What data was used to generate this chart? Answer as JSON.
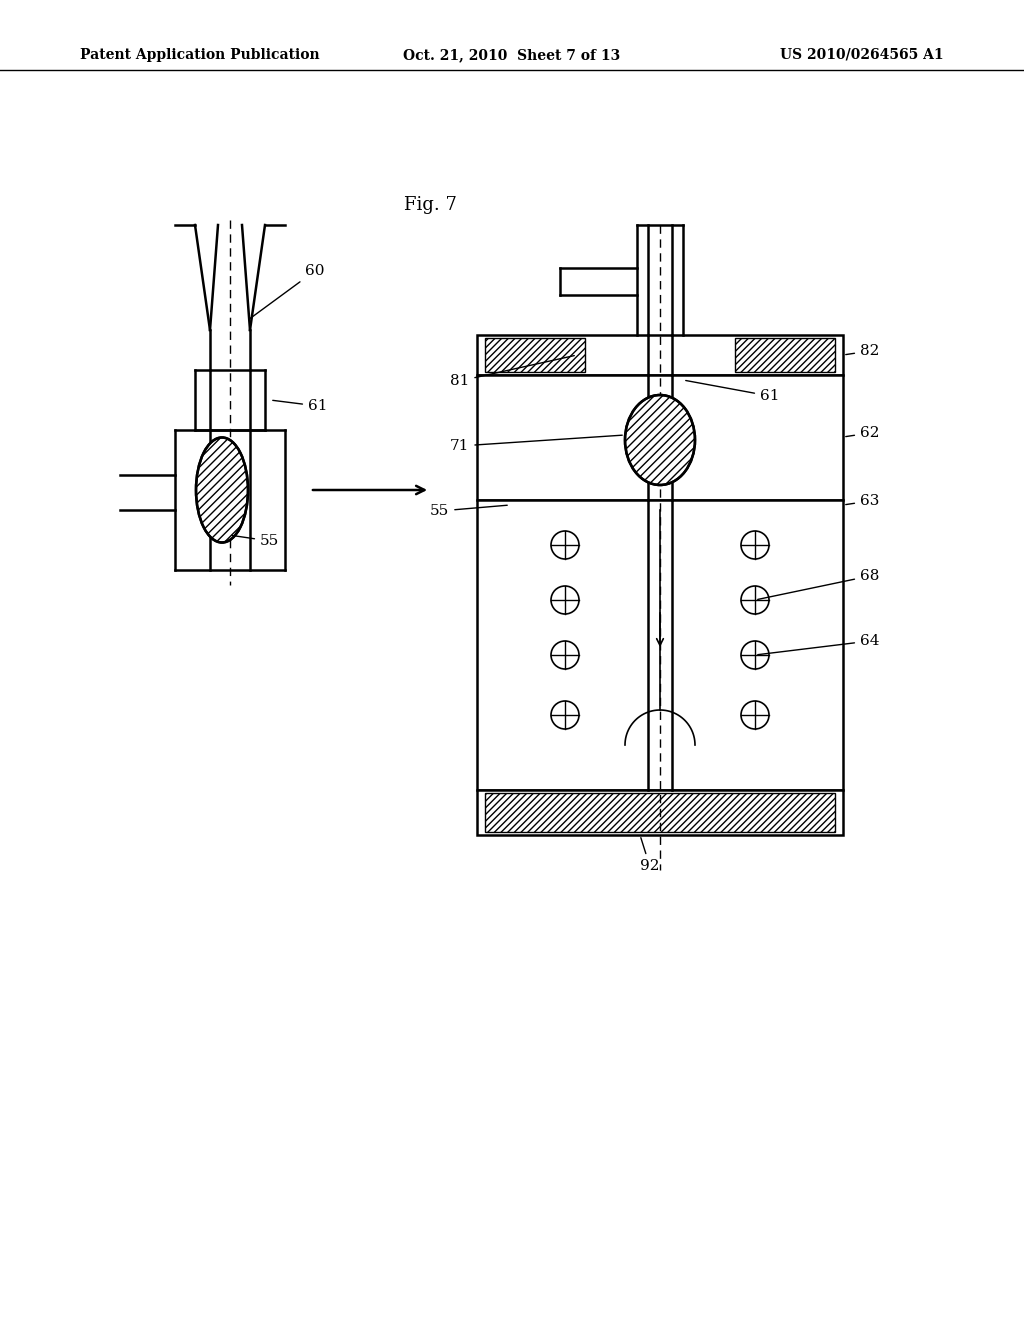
{
  "background_color": "#ffffff",
  "header_left": "Patent Application Publication",
  "header_center": "Oct. 21, 2010  Sheet 7 of 13",
  "header_right": "US 2010/0264565 A1",
  "fig_label": "Fig. 7",
  "line_color": "#000000"
}
